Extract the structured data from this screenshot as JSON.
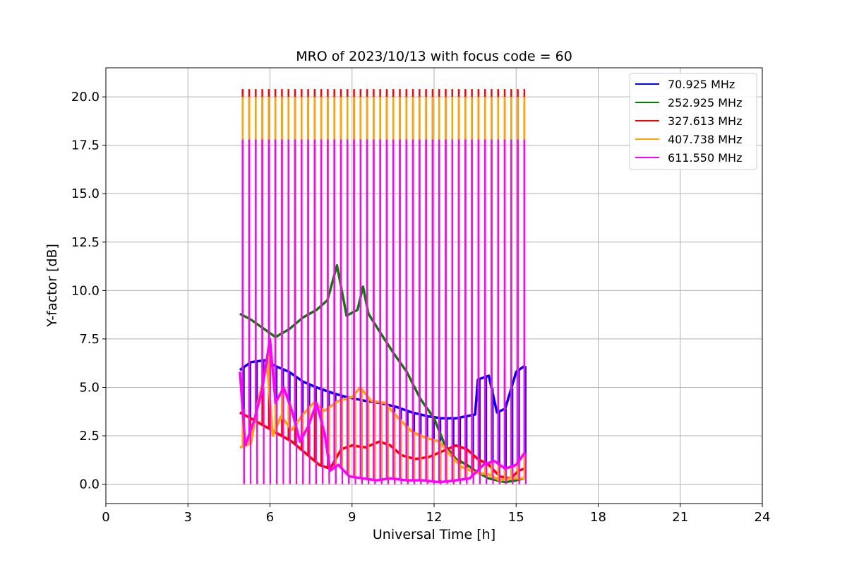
{
  "chart_data": {
    "type": "line",
    "title": "MRO of 2023/10/13 with focus code = 60",
    "xlabel": "Universal Time [h]",
    "ylabel": "Y-factor [dB]",
    "xlim": [
      0,
      24
    ],
    "ylim": [
      -1.0,
      21.5
    ],
    "xticks": [
      0,
      3,
      6,
      9,
      12,
      15,
      18,
      21,
      24
    ],
    "xtick_labels": [
      "0",
      "3",
      "6",
      "9",
      "12",
      "15",
      "18",
      "21",
      "24"
    ],
    "yticks": [
      0.0,
      2.5,
      5.0,
      7.5,
      10.0,
      12.5,
      15.0,
      17.5,
      20.0
    ],
    "ytick_labels": [
      "0.0",
      "2.5",
      "5.0",
      "7.5",
      "10.0",
      "12.5",
      "15.0",
      "17.5",
      "20.0"
    ],
    "grid": true,
    "legend_position": "top-right",
    "spike_start": 5.0,
    "spike_end": 15.3,
    "spike_count": 44,
    "series": [
      {
        "name": " 70.925 MHz",
        "color": "#0000ff",
        "spike_top": 6.0,
        "spike_bottom": 0.1,
        "x": [
          4.9,
          5.3,
          5.8,
          6.2,
          6.7,
          7.2,
          7.7,
          8.3,
          8.8,
          9.5,
          10.0,
          10.6,
          11.2,
          11.8,
          12.3,
          12.8,
          13.5,
          13.6,
          14.0,
          14.3,
          14.6,
          15.0,
          15.3
        ],
        "y": [
          5.9,
          6.3,
          6.4,
          6.1,
          5.8,
          5.3,
          5.0,
          4.7,
          4.5,
          4.3,
          4.2,
          4.0,
          3.7,
          3.5,
          3.4,
          3.4,
          3.6,
          5.4,
          5.6,
          3.7,
          3.9,
          5.8,
          6.1
        ]
      },
      {
        "name": "252.925 MHz",
        "color": "#008000",
        "x": [
          4.9,
          5.3,
          5.8,
          6.2,
          6.7,
          7.2,
          7.7,
          8.1,
          8.45,
          8.8,
          9.2,
          9.4,
          9.6,
          10.0,
          10.5,
          11.0,
          11.5,
          12.0,
          12.4,
          12.8,
          13.2,
          13.6,
          14.0,
          14.3,
          14.6,
          15.0,
          15.3
        ],
        "y": [
          8.8,
          8.5,
          8.0,
          7.6,
          8.0,
          8.6,
          9.0,
          9.5,
          11.3,
          8.7,
          9.0,
          10.2,
          8.8,
          7.9,
          6.8,
          5.8,
          4.4,
          3.4,
          2.0,
          1.3,
          1.0,
          0.6,
          0.3,
          0.2,
          0.1,
          0.2,
          0.3
        ]
      },
      {
        "name": "327.613 MHz",
        "color": "#ff0000",
        "spike_top": 20.4,
        "spike_bottom": 0.0,
        "x": [
          4.9,
          5.3,
          5.8,
          6.3,
          6.8,
          7.3,
          7.8,
          8.2,
          8.6,
          9.0,
          9.5,
          10.0,
          10.4,
          10.8,
          11.3,
          11.8,
          12.3,
          12.8,
          13.2,
          13.6,
          14.0,
          14.4,
          14.8,
          15.1,
          15.3
        ],
        "y": [
          3.7,
          3.4,
          3.0,
          2.6,
          2.2,
          1.6,
          1.0,
          0.8,
          1.8,
          2.0,
          1.9,
          2.2,
          2.0,
          1.5,
          1.3,
          1.4,
          1.7,
          2.0,
          1.8,
          1.3,
          1.0,
          0.4,
          0.3,
          0.7,
          0.8
        ]
      },
      {
        "name": "407.738 MHz",
        "color": "#ffa500",
        "spike_top": 20.0,
        "spike_bottom": 0.2,
        "x": [
          4.9,
          5.3,
          5.6,
          5.9,
          6.1,
          6.4,
          6.8,
          7.2,
          7.6,
          8.0,
          8.5,
          9.0,
          9.3,
          9.7,
          10.2,
          10.7,
          11.2,
          11.7,
          12.2,
          12.6,
          13.0,
          13.5,
          14.0,
          14.4,
          14.8,
          15.3
        ],
        "y": [
          1.9,
          2.1,
          4.5,
          6.2,
          2.5,
          3.5,
          2.8,
          3.6,
          4.2,
          3.8,
          4.3,
          4.5,
          5.0,
          4.3,
          4.2,
          3.4,
          2.7,
          2.4,
          2.2,
          1.5,
          0.9,
          0.6,
          0.5,
          0.2,
          0.3,
          0.3
        ]
      },
      {
        "name": "611.550 MHz",
        "color": "#ff00ff",
        "spike_top": 17.8,
        "spike_bottom": 0.0,
        "x": [
          4.9,
          5.1,
          5.4,
          5.7,
          6.0,
          6.2,
          6.5,
          6.8,
          7.1,
          7.4,
          7.7,
          8.0,
          8.2,
          8.5,
          8.9,
          9.4,
          9.9,
          10.4,
          11.0,
          11.6,
          12.2,
          12.8,
          13.3,
          13.8,
          14.2,
          14.6,
          15.0,
          15.3
        ],
        "y": [
          5.8,
          2.0,
          3.2,
          4.8,
          7.5,
          4.2,
          5.0,
          3.8,
          2.2,
          3.0,
          4.2,
          2.6,
          0.7,
          1.0,
          0.4,
          0.3,
          0.2,
          0.3,
          0.2,
          0.2,
          0.1,
          0.2,
          0.3,
          1.0,
          1.2,
          0.8,
          1.0,
          1.6
        ]
      }
    ]
  }
}
